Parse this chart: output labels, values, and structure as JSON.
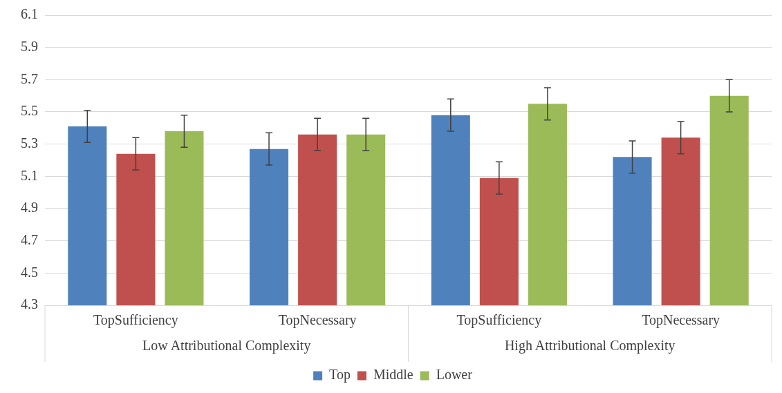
{
  "chart_data": {
    "type": "bar",
    "categories": [
      "TopSufficiency",
      "TopNecessary",
      "TopSufficiency",
      "TopNecessary"
    ],
    "series": [
      {
        "name": "Top",
        "color": "#4f81bd",
        "values": [
          5.41,
          5.27,
          5.48,
          5.22
        ],
        "errors": [
          0.1,
          0.1,
          0.1,
          0.1
        ]
      },
      {
        "name": "Middle",
        "color": "#c0504d",
        "values": [
          5.24,
          5.36,
          5.09,
          5.34
        ],
        "errors": [
          0.1,
          0.1,
          0.1,
          0.1
        ]
      },
      {
        "name": "Lower",
        "color": "#9bbb59",
        "values": [
          5.38,
          5.36,
          5.55,
          5.6
        ],
        "errors": [
          0.1,
          0.1,
          0.1,
          0.1
        ]
      }
    ],
    "annotations": [
      "Low Attributional Complexity",
      "High Attributional Complexity"
    ],
    "ylim": [
      4.3,
      6.1
    ],
    "yticks": [
      4.3,
      4.5,
      4.7,
      4.9,
      5.1,
      5.3,
      5.5,
      5.7,
      5.9,
      6.1
    ],
    "grid": "y",
    "legend": "bottom"
  }
}
